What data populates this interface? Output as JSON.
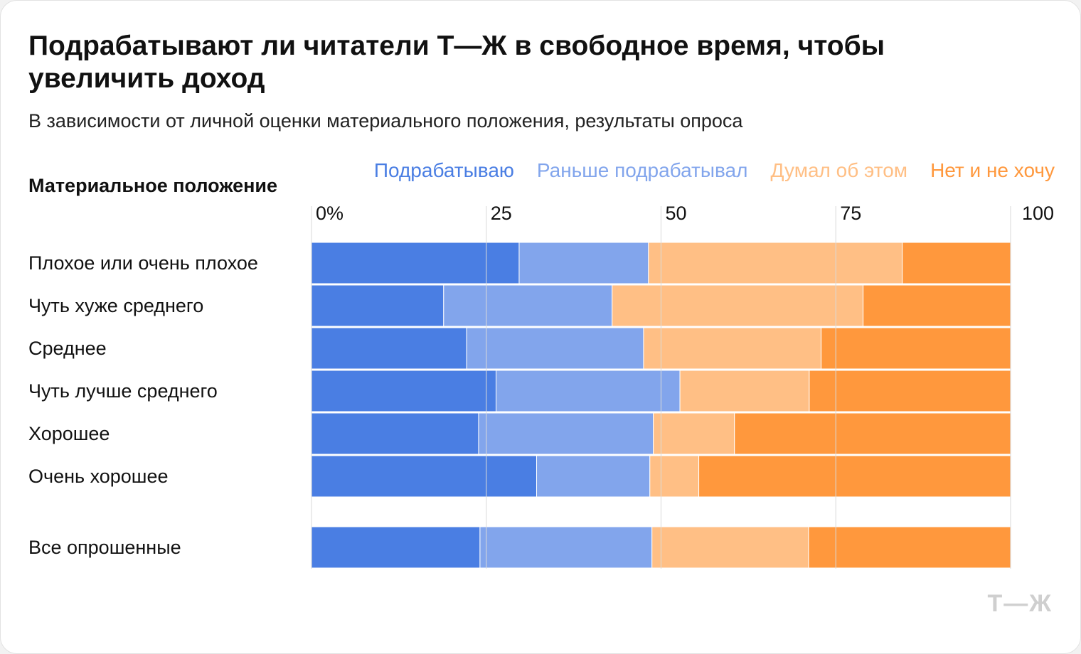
{
  "title": "Подрабатывают ли читатели Т—Ж в свободное время, чтобы увеличить доход",
  "subtitle": "В зависимости от личной оценки материального положения, результаты опроса",
  "y_axis_heading": "Материальное положение",
  "logo": "Т—Ж",
  "colors": {
    "series": [
      "#4a7ee3",
      "#82a5ec",
      "#ffbf85",
      "#ff983d"
    ],
    "grid": "#d9d9d9",
    "background": "#ffffff"
  },
  "chart_data": {
    "type": "bar",
    "orientation": "horizontal",
    "stacked": true,
    "legend_position": "top",
    "xlim": [
      0,
      100
    ],
    "x_ticks": [
      0,
      25,
      50,
      75,
      100
    ],
    "x_tick_labels": [
      "0%",
      "25",
      "50",
      "75",
      "100"
    ],
    "categories": [
      "Плохое или очень плохое",
      "Чуть хуже среднего",
      "Среднее",
      "Чуть лучше среднего",
      "Хорошее",
      "Очень хорошее",
      "Все опрошенные"
    ],
    "separated_categories": [
      "Все опрошенные"
    ],
    "series": [
      {
        "name": "Подрабатываю",
        "values": [
          29.7,
          18.9,
          22.2,
          26.4,
          23.9,
          32.2,
          24.1
        ]
      },
      {
        "name": "Раньше подрабатывал",
        "values": [
          18.5,
          24.1,
          25.3,
          26.3,
          25.0,
          16.2,
          24.6
        ]
      },
      {
        "name": "Думал об этом",
        "values": [
          36.3,
          35.9,
          25.4,
          18.5,
          11.6,
          7.0,
          22.4
        ]
      },
      {
        "name": "Нет и не хочу",
        "values": [
          15.5,
          21.1,
          27.1,
          28.8,
          39.5,
          44.6,
          28.9
        ]
      }
    ]
  }
}
